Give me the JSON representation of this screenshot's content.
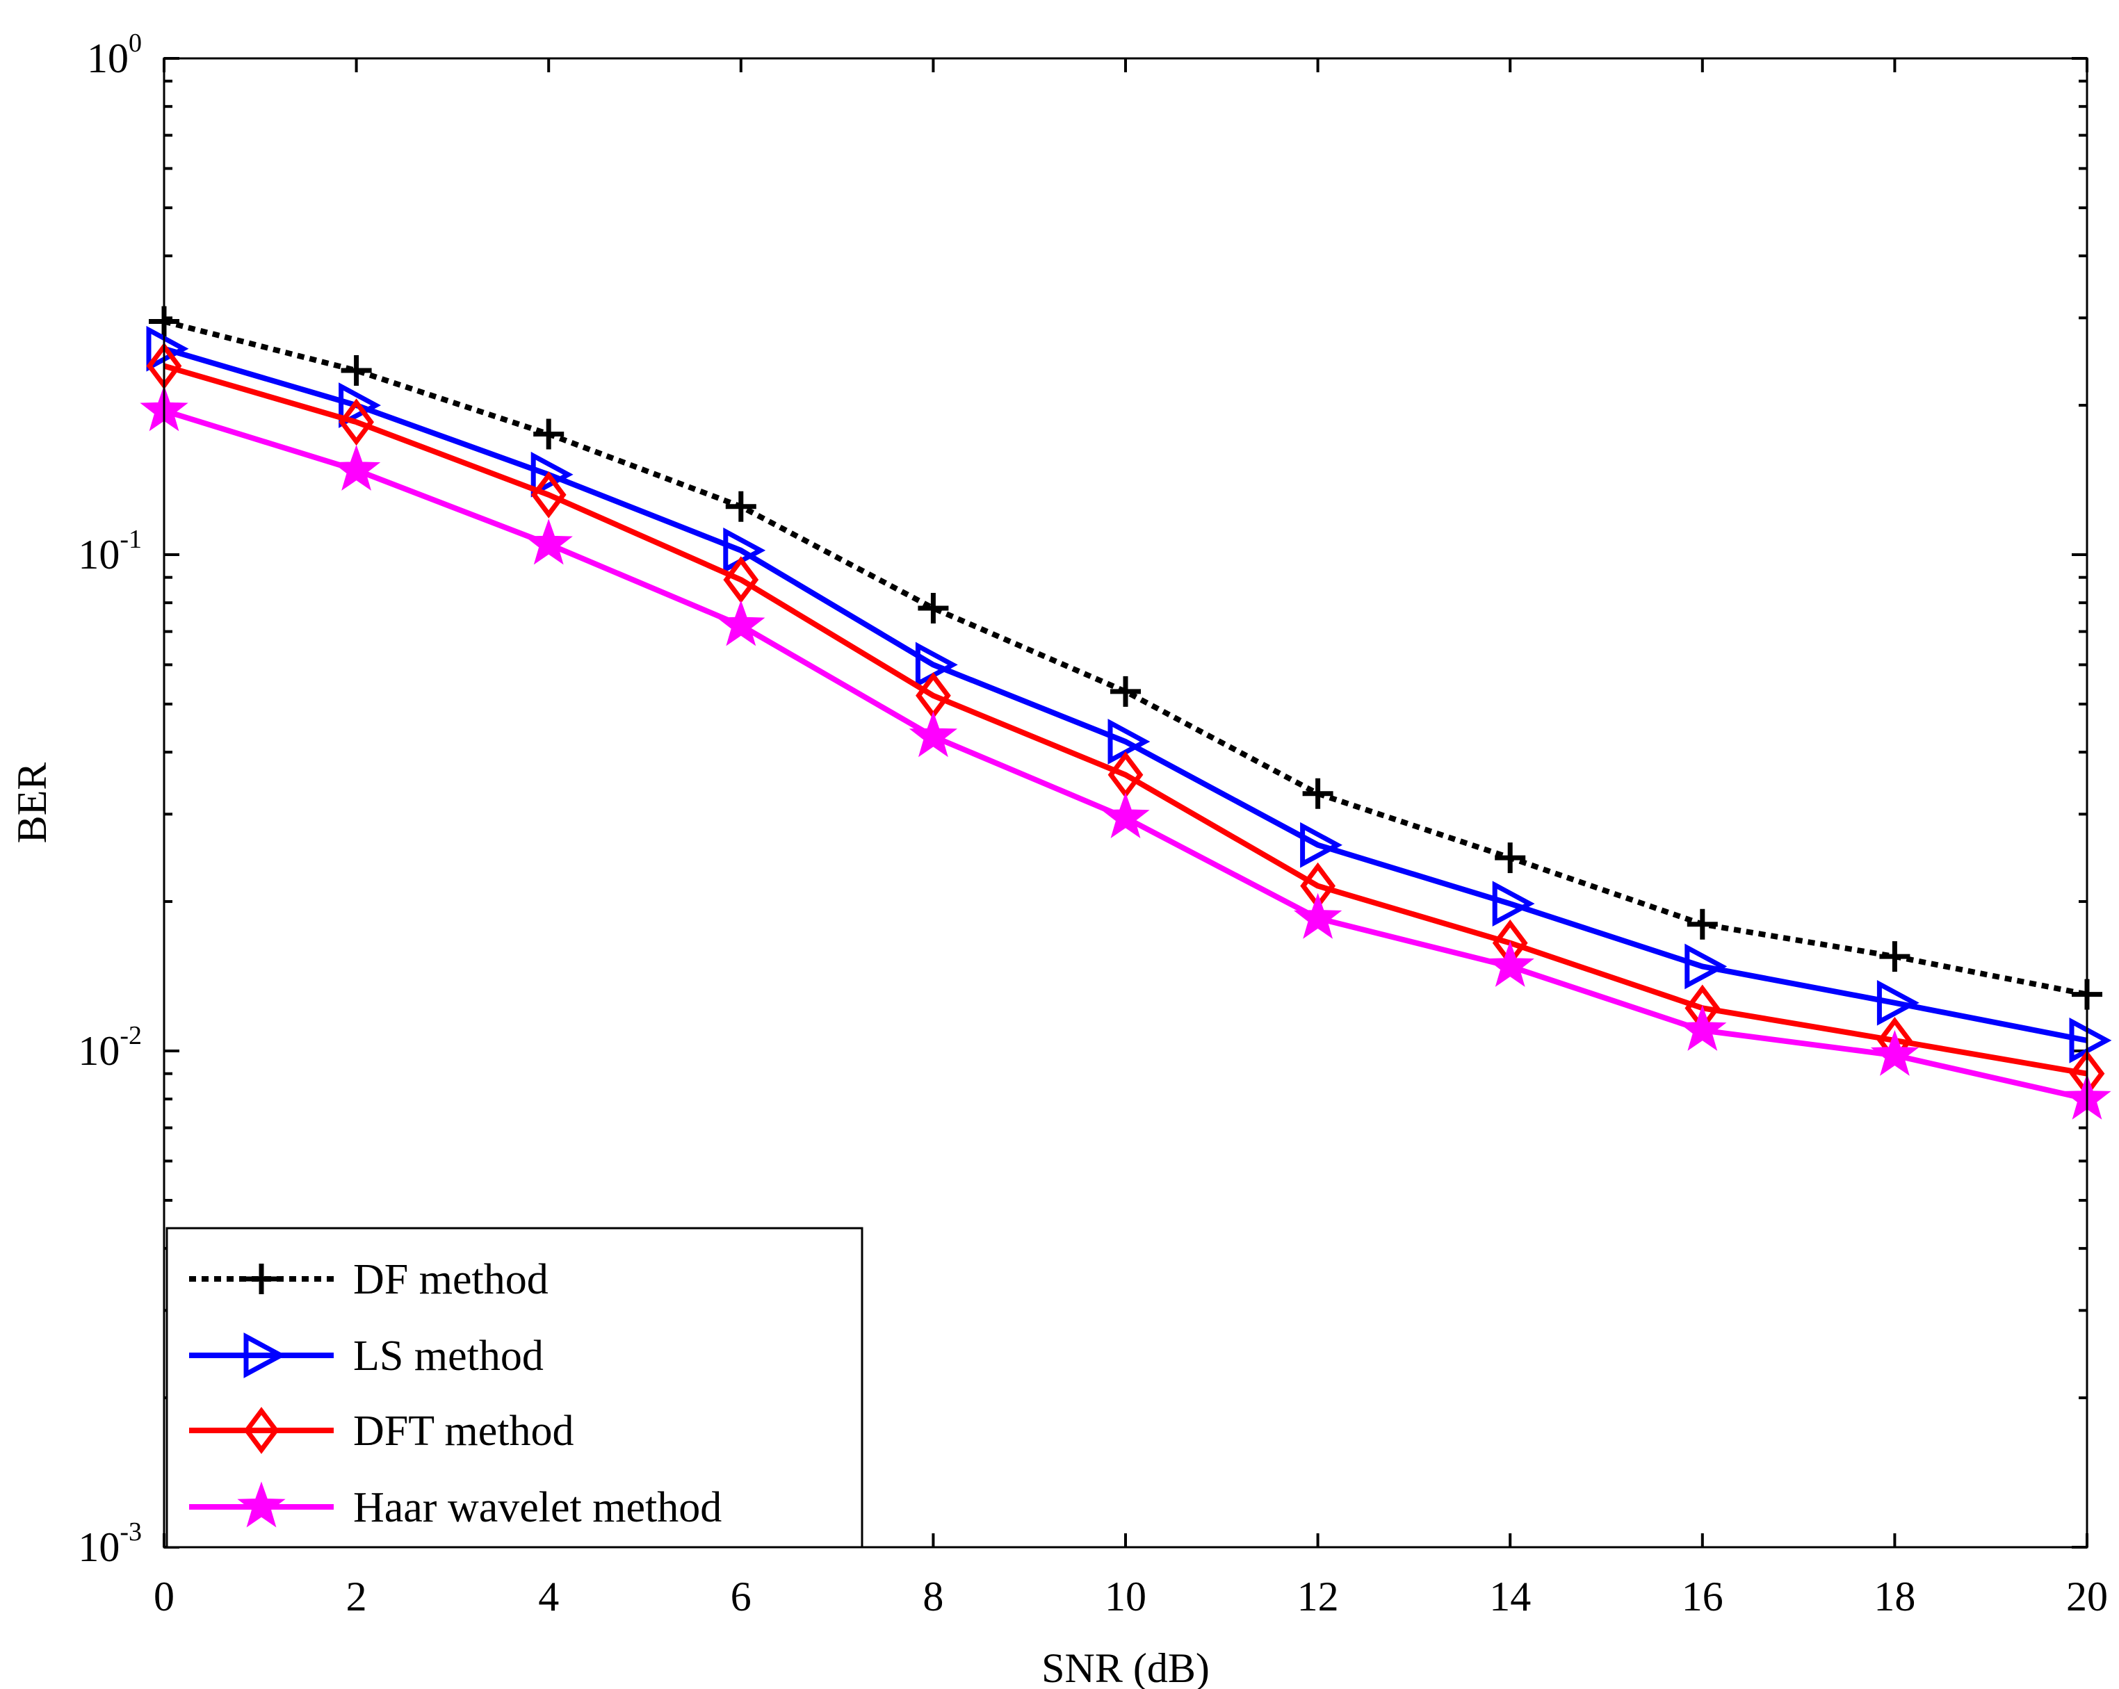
{
  "chart_data": {
    "type": "line",
    "title": "",
    "xlabel": "SNR (dB)",
    "ylabel": "BER",
    "y_scale": "log",
    "xlim": [
      0,
      20
    ],
    "ylim": [
      0.001,
      1
    ],
    "grid": false,
    "legend_position": "bottom-left",
    "x": [
      0,
      2,
      4,
      6,
      8,
      10,
      12,
      14,
      16,
      18,
      20
    ],
    "x_ticks": [
      "0",
      "2",
      "4",
      "6",
      "8",
      "10",
      "12",
      "14",
      "16",
      "18",
      "20"
    ],
    "y_ticks": [
      {
        "value": 1,
        "base": "10",
        "exp": "0"
      },
      {
        "value": 0.1,
        "base": "10",
        "exp": "-1"
      },
      {
        "value": 0.01,
        "base": "10",
        "exp": "-2"
      },
      {
        "value": 0.001,
        "base": "10",
        "exp": "-3"
      }
    ],
    "series": [
      {
        "name": "DF method",
        "color": "#000000",
        "dash": "dotted",
        "marker": "plus",
        "values": [
          0.295,
          0.235,
          0.175,
          0.125,
          0.078,
          0.053,
          0.033,
          0.0245,
          0.018,
          0.0155,
          0.013
        ]
      },
      {
        "name": "LS method",
        "color": "#0000ff",
        "dash": "solid",
        "marker": "triangle-right",
        "values": [
          0.26,
          0.2,
          0.145,
          0.102,
          0.06,
          0.042,
          0.026,
          0.0198,
          0.0148,
          0.0125,
          0.0105
        ]
      },
      {
        "name": "DFT method",
        "color": "#ff0000",
        "dash": "solid",
        "marker": "diamond",
        "values": [
          0.24,
          0.185,
          0.132,
          0.089,
          0.052,
          0.036,
          0.0215,
          0.0165,
          0.0122,
          0.0105,
          0.009
        ]
      },
      {
        "name": "Haar wavelet method",
        "color": "#ff00ff",
        "dash": "solid",
        "marker": "star",
        "values": [
          0.195,
          0.148,
          0.105,
          0.072,
          0.043,
          0.0295,
          0.0185,
          0.0148,
          0.011,
          0.0098,
          0.008
        ]
      }
    ]
  }
}
